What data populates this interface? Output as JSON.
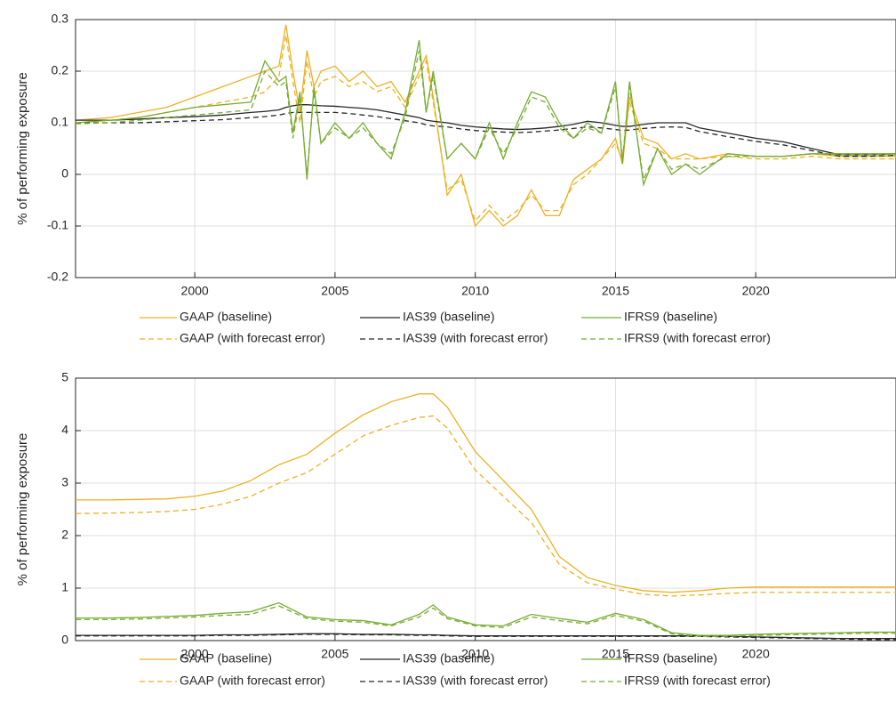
{
  "chart_data": [
    {
      "type": "line",
      "y_label": "% of performing exposure",
      "x": [
        1995.75,
        1997,
        1998,
        1999,
        2000,
        2001,
        2002,
        2002.5,
        2003,
        2003.25,
        2003.5,
        2003.75,
        2004,
        2004.25,
        2004.5,
        2005,
        2005.5,
        2006,
        2006.5,
        2007,
        2007.5,
        2008,
        2008.25,
        2008.5,
        2009,
        2009.5,
        2010,
        2010.5,
        2011,
        2011.5,
        2012,
        2012.5,
        2013,
        2013.5,
        2014,
        2014.5,
        2015,
        2015.25,
        2015.5,
        2016,
        2016.5,
        2017,
        2017.5,
        2018,
        2019,
        2020,
        2021,
        2022,
        2023,
        2024,
        2025
      ],
      "xlim": [
        1995.75,
        2025
      ],
      "xticks": [
        2000,
        2005,
        2010,
        2015,
        2020
      ],
      "ylim": [
        -0.2,
        0.3
      ],
      "yticks": [
        -0.2,
        -0.1,
        0,
        0.1,
        0.2,
        0.3
      ],
      "grid": true,
      "series": [
        {
          "name": "GAAP (baseline)",
          "color": "#edb120",
          "dashed": false,
          "values": [
            0.105,
            0.11,
            0.12,
            0.13,
            0.15,
            0.17,
            0.19,
            0.2,
            0.21,
            0.29,
            0.2,
            0.12,
            0.24,
            0.17,
            0.2,
            0.21,
            0.18,
            0.2,
            0.17,
            0.18,
            0.14,
            0.2,
            0.23,
            0.15,
            -0.04,
            0.0,
            -0.1,
            -0.07,
            -0.1,
            -0.08,
            -0.03,
            -0.08,
            -0.08,
            -0.01,
            0.01,
            0.03,
            0.07,
            0.02,
            0.15,
            0.07,
            0.06,
            0.03,
            0.04,
            0.03,
            0.04,
            0.035,
            0.035,
            0.04,
            0.035,
            0.035,
            0.035
          ]
        },
        {
          "name": "GAAP (with forecast error)",
          "color": "#edb120",
          "dashed": true,
          "values": [
            0.1,
            0.105,
            0.11,
            0.12,
            0.13,
            0.14,
            0.15,
            0.16,
            0.19,
            0.27,
            0.18,
            0.1,
            0.22,
            0.15,
            0.18,
            0.19,
            0.17,
            0.18,
            0.16,
            0.17,
            0.13,
            0.19,
            0.22,
            0.14,
            -0.03,
            -0.01,
            -0.09,
            -0.06,
            -0.09,
            -0.07,
            -0.04,
            -0.07,
            -0.07,
            -0.02,
            0.0,
            0.03,
            0.06,
            0.03,
            0.14,
            0.06,
            0.05,
            0.03,
            0.03,
            0.03,
            0.035,
            0.03,
            0.03,
            0.035,
            0.03,
            0.03,
            0.03
          ]
        },
        {
          "name": "IAS39 (baseline)",
          "color": "#262626",
          "dashed": false,
          "values": [
            0.105,
            0.105,
            0.107,
            0.11,
            0.112,
            0.115,
            0.12,
            0.122,
            0.125,
            0.13,
            0.133,
            0.135,
            0.135,
            0.134,
            0.133,
            0.132,
            0.13,
            0.128,
            0.125,
            0.12,
            0.115,
            0.11,
            0.105,
            0.103,
            0.1,
            0.095,
            0.092,
            0.09,
            0.088,
            0.087,
            0.088,
            0.09,
            0.093,
            0.097,
            0.103,
            0.1,
            0.095,
            0.093,
            0.093,
            0.097,
            0.1,
            0.1,
            0.1,
            0.09,
            0.08,
            0.07,
            0.063,
            0.05,
            0.038,
            0.038,
            0.04
          ]
        },
        {
          "name": "IAS39 (with forecast error)",
          "color": "#262626",
          "dashed": true,
          "values": [
            0.1,
            0.1,
            0.1,
            0.102,
            0.104,
            0.106,
            0.11,
            0.112,
            0.115,
            0.118,
            0.12,
            0.12,
            0.12,
            0.12,
            0.12,
            0.12,
            0.118,
            0.115,
            0.112,
            0.108,
            0.104,
            0.1,
            0.096,
            0.094,
            0.092,
            0.088,
            0.085,
            0.083,
            0.082,
            0.081,
            0.082,
            0.084,
            0.086,
            0.089,
            0.092,
            0.09,
            0.087,
            0.085,
            0.086,
            0.089,
            0.091,
            0.092,
            0.091,
            0.083,
            0.073,
            0.064,
            0.057,
            0.046,
            0.035,
            0.035,
            0.037
          ]
        },
        {
          "name": "IFRS9 (baseline)",
          "color": "#77ac30",
          "dashed": false,
          "values": [
            0.1,
            0.105,
            0.11,
            0.12,
            0.13,
            0.135,
            0.14,
            0.22,
            0.18,
            0.19,
            0.08,
            0.16,
            -0.01,
            0.17,
            0.06,
            0.1,
            0.07,
            0.1,
            0.06,
            0.03,
            0.12,
            0.26,
            0.12,
            0.2,
            0.03,
            0.06,
            0.03,
            0.1,
            0.03,
            0.1,
            0.16,
            0.15,
            0.1,
            0.07,
            0.1,
            0.08,
            0.18,
            0.02,
            0.18,
            -0.02,
            0.05,
            0.0,
            0.02,
            0.0,
            0.04,
            0.035,
            0.035,
            0.04,
            0.04,
            0.04,
            0.04
          ]
        },
        {
          "name": "IFRS9 (with forecast error)",
          "color": "#77ac30",
          "dashed": true,
          "values": [
            0.098,
            0.1,
            0.105,
            0.11,
            0.115,
            0.12,
            0.125,
            0.2,
            0.17,
            0.18,
            0.07,
            0.15,
            0.0,
            0.16,
            0.06,
            0.09,
            0.07,
            0.09,
            0.06,
            0.04,
            0.11,
            0.24,
            0.12,
            0.19,
            0.03,
            0.06,
            0.03,
            0.09,
            0.04,
            0.09,
            0.15,
            0.14,
            0.09,
            0.07,
            0.09,
            0.08,
            0.17,
            0.03,
            0.17,
            -0.01,
            0.05,
            0.01,
            0.02,
            0.01,
            0.035,
            0.035,
            0.035,
            0.04,
            0.038,
            0.038,
            0.038
          ]
        }
      ]
    },
    {
      "type": "line",
      "y_label": "% of performing exposure",
      "x": [
        1995.75,
        1997,
        1998,
        1999,
        2000,
        2001,
        2002,
        2003,
        2004,
        2005,
        2006,
        2007,
        2008,
        2008.5,
        2009,
        2010,
        2011,
        2012,
        2013,
        2014,
        2015,
        2016,
        2017,
        2018,
        2019,
        2020,
        2021,
        2022,
        2023,
        2024,
        2025
      ],
      "xlim": [
        1995.75,
        2025
      ],
      "xticks": [
        2000,
        2005,
        2010,
        2015,
        2020
      ],
      "ylim": [
        0,
        5
      ],
      "yticks": [
        0,
        1,
        2,
        3,
        4,
        5
      ],
      "grid": true,
      "series": [
        {
          "name": "GAAP (baseline)",
          "color": "#edb120",
          "dashed": false,
          "values": [
            2.68,
            2.68,
            2.69,
            2.7,
            2.75,
            2.85,
            3.05,
            3.35,
            3.55,
            3.95,
            4.3,
            4.55,
            4.7,
            4.7,
            4.45,
            3.6,
            3.05,
            2.5,
            1.6,
            1.2,
            1.05,
            0.95,
            0.92,
            0.95,
            1.0,
            1.02,
            1.02,
            1.02,
            1.02,
            1.02,
            1.02
          ]
        },
        {
          "name": "GAAP (with forecast error)",
          "color": "#edb120",
          "dashed": true,
          "values": [
            2.42,
            2.43,
            2.44,
            2.46,
            2.5,
            2.6,
            2.75,
            3.0,
            3.2,
            3.55,
            3.9,
            4.1,
            4.25,
            4.28,
            4.05,
            3.25,
            2.75,
            2.25,
            1.45,
            1.1,
            0.98,
            0.88,
            0.85,
            0.87,
            0.9,
            0.92,
            0.92,
            0.92,
            0.92,
            0.92,
            0.92
          ]
        },
        {
          "name": "IAS39 (baseline)",
          "color": "#262626",
          "dashed": false,
          "values": [
            0.1,
            0.1,
            0.1,
            0.1,
            0.1,
            0.11,
            0.11,
            0.12,
            0.13,
            0.13,
            0.12,
            0.12,
            0.11,
            0.11,
            0.1,
            0.09,
            0.09,
            0.09,
            0.09,
            0.09,
            0.09,
            0.09,
            0.09,
            0.09,
            0.08,
            0.07,
            0.06,
            0.05,
            0.04,
            0.04,
            0.04
          ]
        },
        {
          "name": "IAS39 (with forecast error)",
          "color": "#262626",
          "dashed": true,
          "values": [
            0.09,
            0.09,
            0.09,
            0.09,
            0.09,
            0.1,
            0.1,
            0.11,
            0.12,
            0.12,
            0.11,
            0.11,
            0.1,
            0.1,
            0.09,
            0.08,
            0.08,
            0.08,
            0.08,
            0.08,
            0.08,
            0.08,
            0.08,
            0.08,
            0.07,
            0.06,
            0.05,
            0.04,
            0.03,
            0.02,
            0.02
          ]
        },
        {
          "name": "IFRS9 (baseline)",
          "color": "#77ac30",
          "dashed": false,
          "values": [
            0.43,
            0.43,
            0.44,
            0.46,
            0.48,
            0.52,
            0.55,
            0.72,
            0.45,
            0.4,
            0.38,
            0.3,
            0.5,
            0.68,
            0.45,
            0.3,
            0.28,
            0.5,
            0.42,
            0.35,
            0.52,
            0.4,
            0.15,
            0.1,
            0.1,
            0.12,
            0.13,
            0.14,
            0.15,
            0.16,
            0.16
          ]
        },
        {
          "name": "IFRS9 (with forecast error)",
          "color": "#77ac30",
          "dashed": true,
          "values": [
            0.4,
            0.4,
            0.41,
            0.43,
            0.45,
            0.48,
            0.5,
            0.66,
            0.42,
            0.37,
            0.35,
            0.28,
            0.45,
            0.62,
            0.42,
            0.28,
            0.25,
            0.45,
            0.38,
            0.32,
            0.48,
            0.37,
            0.13,
            0.08,
            0.08,
            0.1,
            0.11,
            0.12,
            0.13,
            0.14,
            0.14
          ]
        }
      ]
    }
  ]
}
